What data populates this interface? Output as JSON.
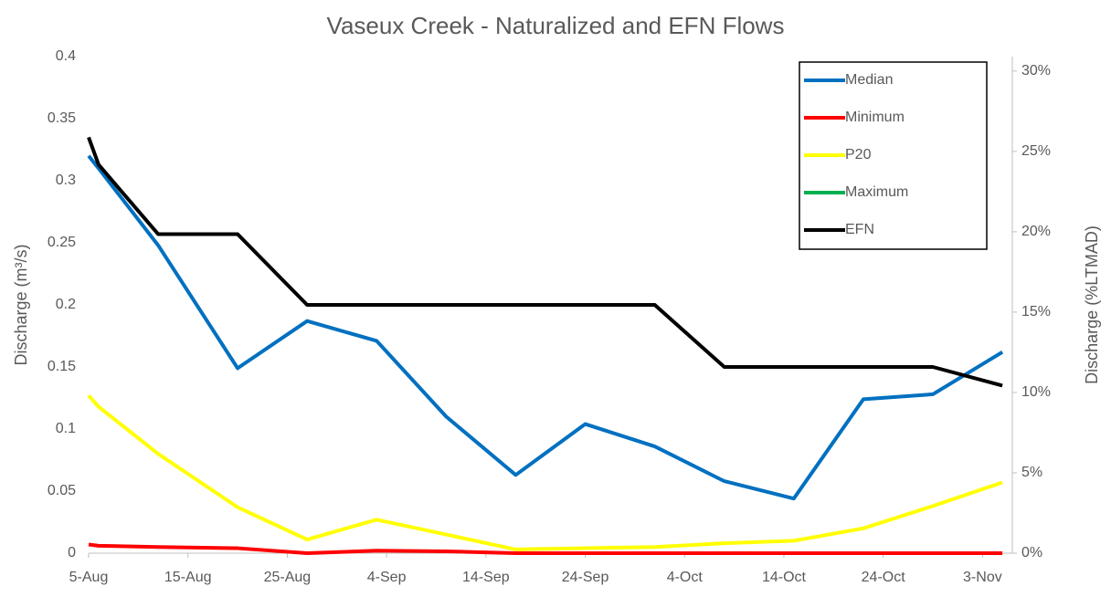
{
  "chart_data": {
    "type": "line",
    "title": "Vaseux Creek - Naturalized and EFN Flows",
    "ylabel": "Discharge (m³/s)",
    "y2label": "Discharge (%LTMAD)",
    "x": [
      "5-Aug",
      "6-Aug",
      "12-Aug",
      "20-Aug",
      "27-Aug",
      "3-Sep",
      "10-Sep",
      "17-Sep",
      "24-Sep",
      "1-Oct",
      "8-Oct",
      "15-Oct",
      "22-Oct",
      "29-Oct",
      "5-Nov"
    ],
    "series": [
      {
        "name": "Median",
        "color": "#0070c0",
        "values": [
          0.32,
          0.31,
          0.248,
          0.149,
          0.187,
          0.171,
          0.11,
          0.063,
          0.104,
          0.086,
          0.058,
          0.044,
          0.124,
          0.128,
          0.162
        ]
      },
      {
        "name": "Minimum",
        "color": "#ff0000",
        "values": [
          0.007,
          0.006,
          0.005,
          0.004,
          0,
          0.002,
          0.0015,
          0,
          0,
          0,
          0,
          0,
          0,
          0,
          0
        ]
      },
      {
        "name": "P20",
        "color": "#ffff00",
        "values": [
          0.127,
          0.118,
          0.08,
          0.037,
          0.011,
          0.027,
          0.015,
          0.003,
          0.004,
          0.005,
          0.008,
          0.01,
          0.02,
          0.038,
          0.057
        ]
      },
      {
        "name": "Maximum",
        "color": "#00b050",
        "values": [
          null,
          null,
          null,
          null,
          null,
          null,
          null,
          null,
          null,
          null,
          null,
          null,
          null,
          null,
          null
        ]
      },
      {
        "name": "EFN",
        "color": "#000000",
        "values": [
          0.335,
          0.313,
          0.257,
          0.257,
          0.2,
          0.2,
          0.2,
          0.2,
          0.2,
          0.2,
          0.15,
          0.15,
          0.15,
          0.15,
          0.135
        ]
      }
    ],
    "xlim": [
      "5-Aug",
      "6-Nov"
    ],
    "xticks": [
      "5-Aug",
      "15-Aug",
      "25-Aug",
      "4-Sep",
      "14-Sep",
      "24-Sep",
      "4-Oct",
      "14-Oct",
      "24-Oct",
      "3-Nov"
    ],
    "ylim": [
      0,
      0.4
    ],
    "yticks": [
      0,
      0.05,
      0.1,
      0.15,
      0.2,
      0.25,
      0.3,
      0.35,
      0.4
    ],
    "y2lim": [
      0,
      30.9
    ],
    "y2ticks": [
      {
        "value": 0,
        "label": "0%"
      },
      {
        "value": 5,
        "label": "5%"
      },
      {
        "value": 10,
        "label": "10%"
      },
      {
        "value": 15,
        "label": "15%"
      },
      {
        "value": 20,
        "label": "20%"
      },
      {
        "value": 25,
        "label": "25%"
      },
      {
        "value": 30,
        "label": "30%"
      }
    ],
    "legend": "upper right"
  }
}
